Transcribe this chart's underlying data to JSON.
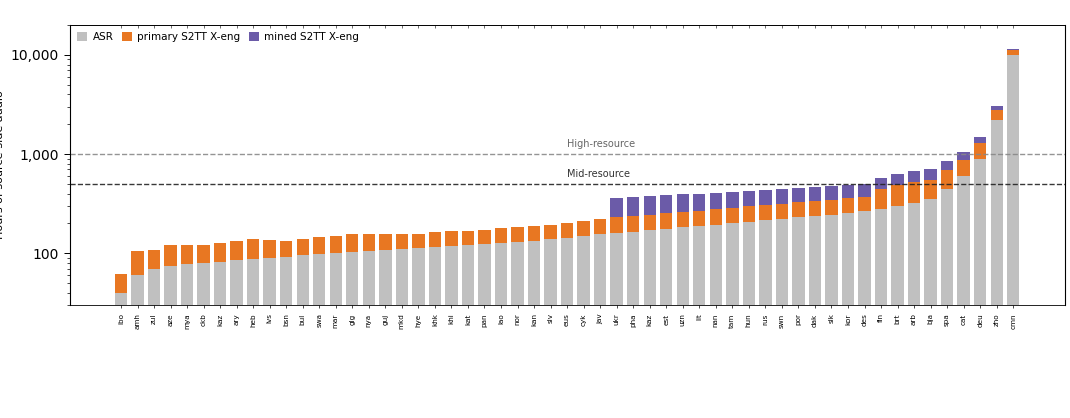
{
  "langs": [
    "ibo",
    "amh",
    "zul",
    "aze",
    "mya",
    "ckb",
    "kaz",
    "ary",
    "heb",
    "lvs",
    "bsn",
    "bul",
    "swa",
    "mar",
    "glg",
    "nya",
    "guj",
    "mkd",
    "hye",
    "khk",
    "khi",
    "kat",
    "pan",
    "lao",
    "nor",
    "kan",
    "slv",
    "eus",
    "cyk",
    "jav",
    "ukr",
    "pha",
    "kaz",
    "est",
    "uzn",
    "lit",
    "nan",
    "tam",
    "hun",
    "rus",
    "swn",
    "por",
    "dak",
    "slk",
    "kor",
    "des",
    "fin",
    "brt",
    "arb",
    "bja",
    "spa",
    "cat",
    "deu",
    "zho",
    "cmn"
  ],
  "asr": [
    40,
    60,
    70,
    75,
    78,
    80,
    82,
    85,
    88,
    90,
    92,
    95,
    98,
    100,
    103,
    105,
    108,
    110,
    112,
    115,
    118,
    120,
    123,
    126,
    130,
    133,
    138,
    142,
    148,
    155,
    160,
    165,
    170,
    175,
    182,
    188,
    194,
    200,
    208,
    215,
    222,
    230,
    238,
    245,
    255,
    265,
    280,
    300,
    320,
    350,
    450,
    600,
    900,
    2200,
    10000
  ],
  "primary": [
    22,
    45,
    38,
    45,
    42,
    42,
    45,
    48,
    50,
    45,
    42,
    45,
    48,
    50,
    52,
    50,
    48,
    46,
    44,
    48,
    50,
    48,
    50,
    52,
    56,
    57,
    55,
    58,
    62,
    68,
    70,
    72,
    75,
    78,
    80,
    82,
    85,
    88,
    90,
    92,
    95,
    98,
    100,
    102,
    105,
    108,
    170,
    190,
    200,
    200,
    240,
    280,
    380,
    600,
    1200
  ],
  "mined": [
    0,
    0,
    0,
    0,
    0,
    0,
    0,
    0,
    0,
    0,
    0,
    0,
    0,
    0,
    0,
    0,
    0,
    0,
    0,
    0,
    0,
    0,
    0,
    0,
    0,
    0,
    0,
    0,
    0,
    0,
    130,
    130,
    130,
    130,
    130,
    130,
    130,
    130,
    130,
    130,
    130,
    130,
    130,
    130,
    130,
    130,
    130,
    140,
    150,
    150,
    170,
    180,
    200,
    250,
    300
  ],
  "asr_color": "#c0c0c0",
  "primary_color": "#e87722",
  "mined_color": "#6b5ba8",
  "high_resource_line": 1000,
  "mid_resource_line": 500,
  "legend_labels": [
    "ASR",
    "primary S2TT X-eng",
    "mined S2TT X-eng"
  ],
  "ylim_min": 30,
  "ylim_max": 20000,
  "background_color": "#ffffff"
}
